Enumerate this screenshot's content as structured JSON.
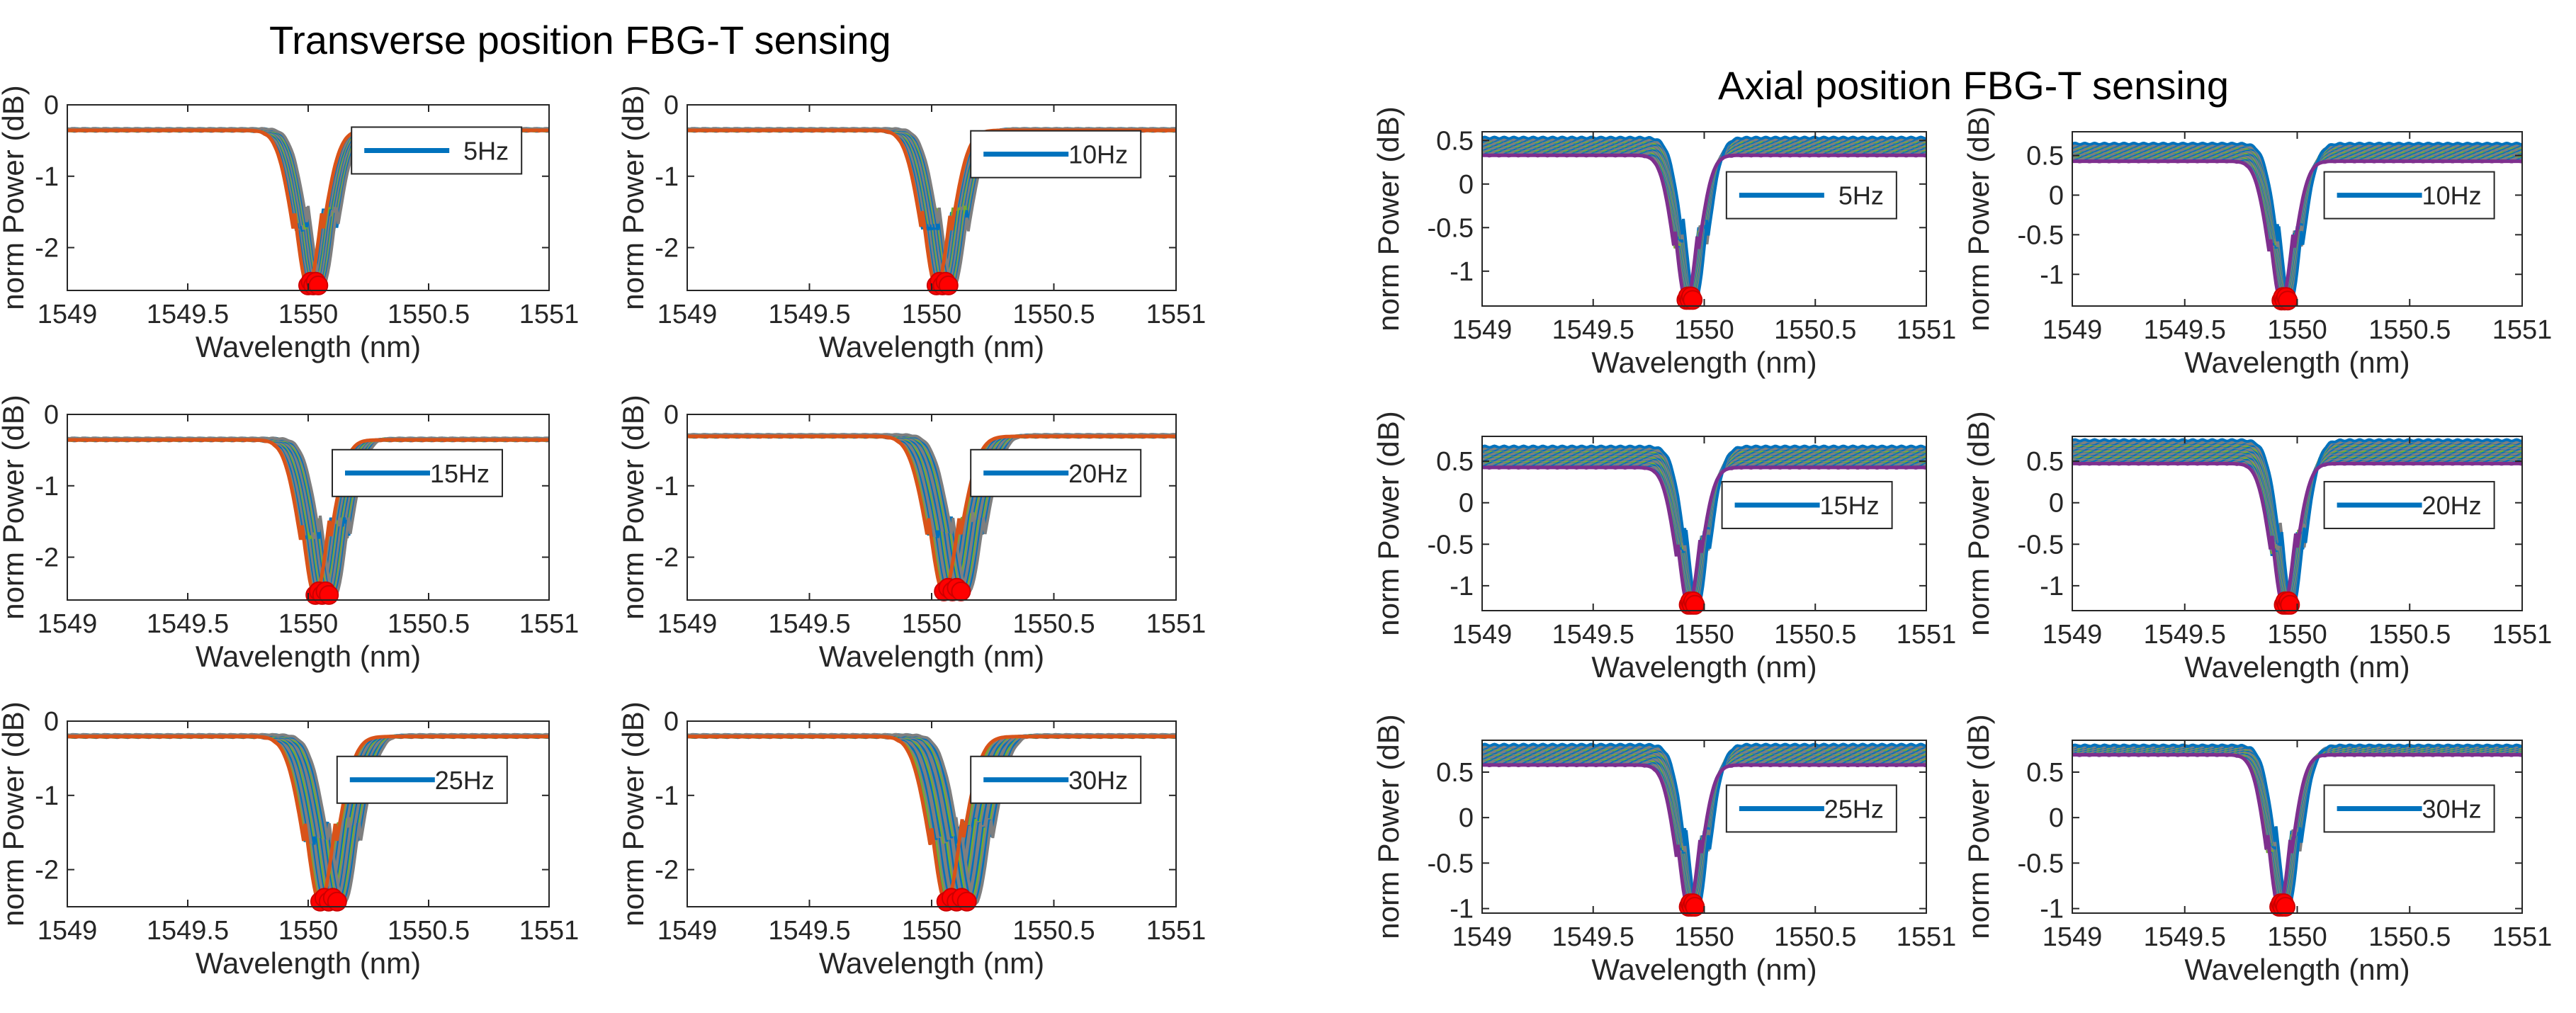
{
  "panel_titles": {
    "left": "Transverse position FBG-T sensing",
    "right": "Axial position FBG-T sensing"
  },
  "colors": {
    "trace_blue": "#0072BD",
    "trace_orange": "#D95319",
    "trace_gray": "#7f7f7f",
    "trace_purple": "#7E2F8E",
    "trace_olive": "#77AC30",
    "marker_red": "#ff0000",
    "axis": "#262626"
  },
  "chart_data": [
    {
      "type": "line",
      "group": "transverse",
      "legend": "5Hz",
      "xlabel": "Wavelength (nm)",
      "ylabel": "norm Power (dB)",
      "xlim": [
        1549,
        1551
      ],
      "ylim": [
        -2.6,
        0
      ],
      "xticks": [
        "1549",
        "1549.5",
        "1550",
        "1550.5",
        "1551"
      ],
      "yticks": [
        {
          "v": 0,
          "label": "0"
        },
        {
          "v": -1,
          "label": "-1"
        },
        {
          "v": -2,
          "label": "-2"
        }
      ],
      "baseline": -0.35,
      "dip_center": 1550.0,
      "dip_depth": -2.55,
      "dip_width": 0.05,
      "spread": 0.06,
      "peak_wavelength": 1550.0
    },
    {
      "type": "line",
      "group": "transverse",
      "legend": "10Hz",
      "xlabel": "Wavelength (nm)",
      "ylabel": "norm Power (dB)",
      "xlim": [
        1549,
        1551
      ],
      "ylim": [
        -2.6,
        0
      ],
      "xticks": [
        "1549",
        "1549.5",
        "1550",
        "1550.5",
        "1551"
      ],
      "yticks": [
        {
          "v": 0,
          "label": "0"
        },
        {
          "v": -1,
          "label": "-1"
        },
        {
          "v": -2,
          "label": "-2"
        }
      ],
      "baseline": -0.35,
      "dip_center": 1550.02,
      "dip_depth": -2.55,
      "dip_width": 0.05,
      "spread": 0.07,
      "peak_wavelength": 1550.02
    },
    {
      "type": "line",
      "group": "transverse",
      "legend": "15Hz",
      "xlabel": "Wavelength (nm)",
      "ylabel": "norm Power (dB)",
      "xlim": [
        1549,
        1551
      ],
      "ylim": [
        -2.6,
        0
      ],
      "xticks": [
        "1549",
        "1549.5",
        "1550",
        "1550.5",
        "1551"
      ],
      "yticks": [
        {
          "v": 0,
          "label": "0"
        },
        {
          "v": -1,
          "label": "-1"
        },
        {
          "v": -2,
          "label": "-2"
        }
      ],
      "baseline": -0.35,
      "dip_center": 1550.03,
      "dip_depth": -2.55,
      "dip_width": 0.05,
      "spread": 0.08,
      "peak_wavelength": 1550.03
    },
    {
      "type": "line",
      "group": "transverse",
      "legend": "20Hz",
      "xlabel": "Wavelength (nm)",
      "ylabel": "norm Power (dB)",
      "xlim": [
        1549,
        1551
      ],
      "ylim": [
        -2.6,
        0
      ],
      "xticks": [
        "1549",
        "1549.5",
        "1550",
        "1550.5",
        "1551"
      ],
      "yticks": [
        {
          "v": 0,
          "label": "0"
        },
        {
          "v": -1,
          "label": "-1"
        },
        {
          "v": -2,
          "label": "-2"
        }
      ],
      "baseline": -0.3,
      "dip_center": 1550.05,
      "dip_depth": -2.5,
      "dip_width": 0.055,
      "spread": 0.1,
      "peak_wavelength": 1550.05
    },
    {
      "type": "line",
      "group": "transverse",
      "legend": "25Hz",
      "xlabel": "Wavelength (nm)",
      "ylabel": "norm Power (dB)",
      "xlim": [
        1549,
        1551
      ],
      "ylim": [
        -2.5,
        0
      ],
      "xticks": [
        "1549",
        "1549.5",
        "1550",
        "1550.5",
        "1551"
      ],
      "yticks": [
        {
          "v": 0,
          "label": "0"
        },
        {
          "v": -1,
          "label": "-1"
        },
        {
          "v": -2,
          "label": "-2"
        }
      ],
      "baseline": -0.2,
      "dip_center": 1550.05,
      "dip_depth": -2.45,
      "dip_width": 0.055,
      "spread": 0.1,
      "peak_wavelength": 1550.05
    },
    {
      "type": "line",
      "group": "transverse",
      "legend": "30Hz",
      "xlabel": "Wavelength (nm)",
      "ylabel": "norm Power (dB)",
      "xlim": [
        1549,
        1551
      ],
      "ylim": [
        -2.5,
        0
      ],
      "xticks": [
        "1549",
        "1549.5",
        "1550",
        "1550.5",
        "1551"
      ],
      "yticks": [
        {
          "v": 0,
          "label": "0"
        },
        {
          "v": -1,
          "label": "-1"
        },
        {
          "v": -2,
          "label": "-2"
        }
      ],
      "baseline": -0.2,
      "dip_center": 1550.06,
      "dip_depth": -2.45,
      "dip_width": 0.055,
      "spread": 0.12,
      "peak_wavelength": 1550.06
    },
    {
      "type": "line",
      "group": "axial",
      "legend": "5Hz",
      "xlabel": "Wavelength (nm)",
      "ylabel": "norm Power (dB)",
      "xlim": [
        1549,
        1551
      ],
      "ylim": [
        -1.4,
        0.6
      ],
      "xticks": [
        "1549",
        "1549.5",
        "1550",
        "1550.5",
        "1551"
      ],
      "yticks": [
        {
          "v": 0.5,
          "label": "0.5"
        },
        {
          "v": 0,
          "label": "0"
        },
        {
          "v": -0.5,
          "label": "-0.5"
        },
        {
          "v": -1,
          "label": "-1"
        }
      ],
      "baseline": 0.35,
      "dip_center": 1549.92,
      "dip_depth": -1.35,
      "dip_width": 0.045,
      "spread": 0.04,
      "band": 0.2,
      "peak_wavelength": 1549.92
    },
    {
      "type": "line",
      "group": "axial",
      "legend": "10Hz",
      "xlabel": "Wavelength (nm)",
      "ylabel": "norm Power (dB)",
      "xlim": [
        1549,
        1551
      ],
      "ylim": [
        -1.4,
        0.8
      ],
      "xticks": [
        "1549",
        "1549.5",
        "1550",
        "1550.5",
        "1551"
      ],
      "yticks": [
        {
          "v": 0.5,
          "label": "0.5"
        },
        {
          "v": 0,
          "label": "0"
        },
        {
          "v": -0.5,
          "label": "-0.5"
        },
        {
          "v": -1,
          "label": "-1"
        }
      ],
      "baseline": 0.45,
      "dip_center": 1549.93,
      "dip_depth": -1.35,
      "dip_width": 0.045,
      "spread": 0.04,
      "band": 0.22,
      "peak_wavelength": 1549.93
    },
    {
      "type": "line",
      "group": "axial",
      "legend": "15Hz",
      "xlabel": "Wavelength (nm)",
      "ylabel": "norm Power (dB)",
      "xlim": [
        1549,
        1551
      ],
      "ylim": [
        -1.3,
        0.8
      ],
      "xticks": [
        "1549",
        "1549.5",
        "1550",
        "1550.5",
        "1551"
      ],
      "yticks": [
        {
          "v": 0.5,
          "label": "0.5"
        },
        {
          "v": 0,
          "label": "0"
        },
        {
          "v": -0.5,
          "label": "-0.5"
        },
        {
          "v": -1,
          "label": "-1"
        }
      ],
      "baseline": 0.45,
      "dip_center": 1549.93,
      "dip_depth": -1.25,
      "dip_width": 0.045,
      "spread": 0.04,
      "band": 0.25,
      "peak_wavelength": 1549.93
    },
    {
      "type": "line",
      "group": "axial",
      "legend": "20Hz",
      "xlabel": "Wavelength (nm)",
      "ylabel": "norm Power (dB)",
      "xlim": [
        1549,
        1551
      ],
      "ylim": [
        -1.3,
        0.8
      ],
      "xticks": [
        "1549",
        "1549.5",
        "1550",
        "1550.5",
        "1551"
      ],
      "yticks": [
        {
          "v": 0.5,
          "label": "0.5"
        },
        {
          "v": 0,
          "label": "0"
        },
        {
          "v": -0.5,
          "label": "-0.5"
        },
        {
          "v": -1,
          "label": "-1"
        }
      ],
      "baseline": 0.5,
      "dip_center": 1549.94,
      "dip_depth": -1.25,
      "dip_width": 0.045,
      "spread": 0.04,
      "band": 0.28,
      "peak_wavelength": 1549.94
    },
    {
      "type": "line",
      "group": "axial",
      "legend": "25Hz",
      "xlabel": "Wavelength (nm)",
      "ylabel": "norm Power (dB)",
      "xlim": [
        1549,
        1551
      ],
      "ylim": [
        -1.05,
        0.85
      ],
      "xticks": [
        "1549",
        "1549.5",
        "1550",
        "1550.5",
        "1551"
      ],
      "yticks": [
        {
          "v": 0.5,
          "label": "0.5"
        },
        {
          "v": 0,
          "label": "0"
        },
        {
          "v": -0.5,
          "label": "-0.5"
        },
        {
          "v": -1,
          "label": "-1"
        }
      ],
      "baseline": 0.6,
      "dip_center": 1549.93,
      "dip_depth": -1.0,
      "dip_width": 0.045,
      "spread": 0.04,
      "band": 0.22,
      "peak_wavelength": 1549.93
    },
    {
      "type": "line",
      "group": "axial",
      "legend": "30Hz",
      "xlabel": "Wavelength (nm)",
      "ylabel": "norm Power (dB)",
      "xlim": [
        1549,
        1551
      ],
      "ylim": [
        -1.05,
        0.85
      ],
      "xticks": [
        "1549",
        "1549.5",
        "1550",
        "1550.5",
        "1551"
      ],
      "yticks": [
        {
          "v": 0.5,
          "label": "0.5"
        },
        {
          "v": 0,
          "label": "0"
        },
        {
          "v": -0.5,
          "label": "-0.5"
        },
        {
          "v": -1,
          "label": "-1"
        }
      ],
      "baseline": 0.7,
      "dip_center": 1549.92,
      "dip_depth": -1.0,
      "dip_width": 0.045,
      "spread": 0.04,
      "band": 0.1,
      "peak_wavelength": 1549.92
    }
  ]
}
